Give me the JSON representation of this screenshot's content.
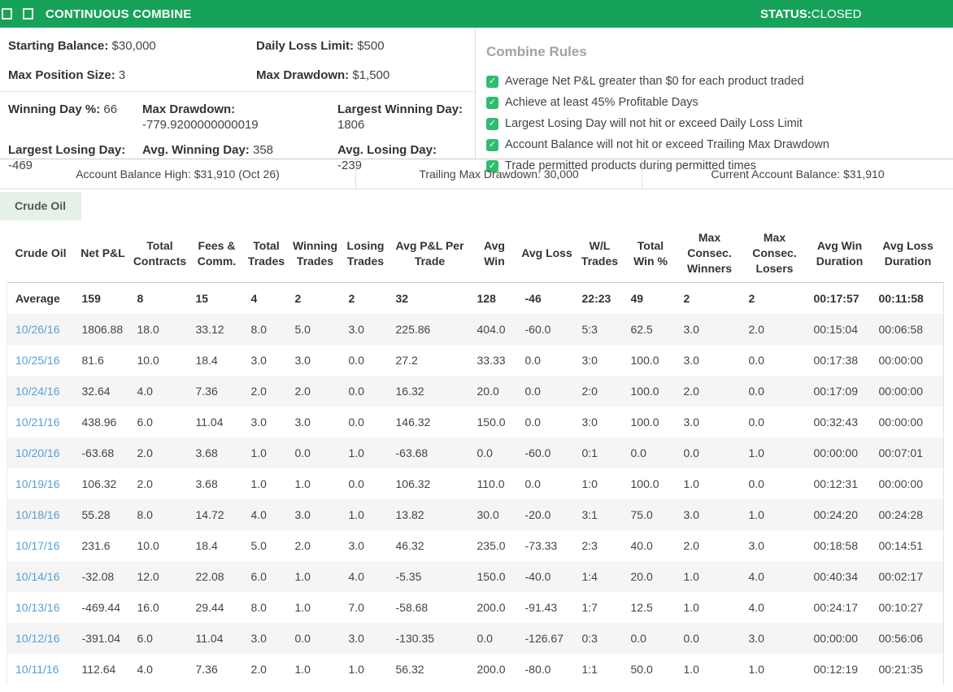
{
  "header": {
    "title": "CONTINUOUS COMBINE",
    "status_label": "STATUS:",
    "status_value": "CLOSED",
    "bar_color": "#16a259"
  },
  "stats": {
    "row1": [
      {
        "label": "Starting Balance:",
        "value": "$30,000"
      },
      {
        "label": "Daily Loss Limit:",
        "value": "$500"
      },
      {
        "label": "Max Position Size:",
        "value": "3"
      },
      {
        "label": "Max Drawdown:",
        "value": "$1,500"
      }
    ],
    "row2": [
      {
        "label": "Winning Day %:",
        "value": "66"
      },
      {
        "label": "Max Drawdown:",
        "value": "-779.9200000000019"
      },
      {
        "label": "Largest Winning Day:",
        "value": "1806"
      },
      {
        "label": "Largest Losing Day:",
        "value": "-469"
      },
      {
        "label": "Avg. Winning Day:",
        "value": "358"
      },
      {
        "label": "Avg. Losing Day:",
        "value": "-239"
      }
    ]
  },
  "rules": {
    "title": "Combine Rules",
    "check_color": "#2ebd70",
    "items": [
      "Average Net P&L greater than $0 for each product traded",
      "Achieve at least 45% Profitable Days",
      "Largest Losing Day will not hit or exceed Daily Loss Limit",
      "Account Balance will not hit or exceed Trailing Max Drawdown",
      "Trade permitted products during permitted times"
    ]
  },
  "balance_bar": {
    "cells": [
      "Account Balance High: $31,910 (Oct 26)",
      "Trailing Max Drawdown: 30,000",
      "Current Account Balance: $31,910"
    ]
  },
  "tab": {
    "label": "Crude Oil"
  },
  "table": {
    "headers": [
      "Crude Oil",
      "Net P&L",
      "Total Contracts",
      "Fees & Comm.",
      "Total Trades",
      "Winning Trades",
      "Losing Trades",
      "Avg P&L Per Trade",
      "Avg Win",
      "Avg Loss",
      "W/L Trades",
      "Total Win %",
      "Max Consec. Winners",
      "Max Consec. Losers",
      "Avg Win Duration",
      "Avg Loss Duration"
    ],
    "average_row": [
      "Average",
      "159",
      "8",
      "15",
      "4",
      "2",
      "2",
      "32",
      "128",
      "-46",
      "22:23",
      "49",
      "2",
      "2",
      "00:17:57",
      "00:11:58"
    ],
    "rows": [
      [
        "10/26/16",
        "1806.88",
        "18.0",
        "33.12",
        "8.0",
        "5.0",
        "3.0",
        "225.86",
        "404.0",
        "-60.0",
        "5:3",
        "62.5",
        "3.0",
        "2.0",
        "00:15:04",
        "00:06:58"
      ],
      [
        "10/25/16",
        "81.6",
        "10.0",
        "18.4",
        "3.0",
        "3.0",
        "0.0",
        "27.2",
        "33.33",
        "0.0",
        "3:0",
        "100.0",
        "3.0",
        "0.0",
        "00:17:38",
        "00:00:00"
      ],
      [
        "10/24/16",
        "32.64",
        "4.0",
        "7.36",
        "2.0",
        "2.0",
        "0.0",
        "16.32",
        "20.0",
        "0.0",
        "2:0",
        "100.0",
        "2.0",
        "0.0",
        "00:17:09",
        "00:00:00"
      ],
      [
        "10/21/16",
        "438.96",
        "6.0",
        "11.04",
        "3.0",
        "3.0",
        "0.0",
        "146.32",
        "150.0",
        "0.0",
        "3:0",
        "100.0",
        "3.0",
        "0.0",
        "00:32:43",
        "00:00:00"
      ],
      [
        "10/20/16",
        "-63.68",
        "2.0",
        "3.68",
        "1.0",
        "0.0",
        "1.0",
        "-63.68",
        "0.0",
        "-60.0",
        "0:1",
        "0.0",
        "0.0",
        "1.0",
        "00:00:00",
        "00:07:01"
      ],
      [
        "10/19/16",
        "106.32",
        "2.0",
        "3.68",
        "1.0",
        "1.0",
        "0.0",
        "106.32",
        "110.0",
        "0.0",
        "1:0",
        "100.0",
        "1.0",
        "0.0",
        "00:12:31",
        "00:00:00"
      ],
      [
        "10/18/16",
        "55.28",
        "8.0",
        "14.72",
        "4.0",
        "3.0",
        "1.0",
        "13.82",
        "30.0",
        "-20.0",
        "3:1",
        "75.0",
        "3.0",
        "1.0",
        "00:24:20",
        "00:24:28"
      ],
      [
        "10/17/16",
        "231.6",
        "10.0",
        "18.4",
        "5.0",
        "2.0",
        "3.0",
        "46.32",
        "235.0",
        "-73.33",
        "2:3",
        "40.0",
        "2.0",
        "3.0",
        "00:18:58",
        "00:14:51"
      ],
      [
        "10/14/16",
        "-32.08",
        "12.0",
        "22.08",
        "6.0",
        "1.0",
        "4.0",
        "-5.35",
        "150.0",
        "-40.0",
        "1:4",
        "20.0",
        "1.0",
        "4.0",
        "00:40:34",
        "00:02:17"
      ],
      [
        "10/13/16",
        "-469.44",
        "16.0",
        "29.44",
        "8.0",
        "1.0",
        "7.0",
        "-58.68",
        "200.0",
        "-91.43",
        "1:7",
        "12.5",
        "1.0",
        "4.0",
        "00:24:17",
        "00:10:27"
      ],
      [
        "10/12/16",
        "-391.04",
        "6.0",
        "11.04",
        "3.0",
        "0.0",
        "3.0",
        "-130.35",
        "0.0",
        "-126.67",
        "0:3",
        "0.0",
        "0.0",
        "3.0",
        "00:00:00",
        "00:56:06"
      ],
      [
        "10/11/16",
        "112.64",
        "4.0",
        "7.36",
        "2.0",
        "1.0",
        "1.0",
        "56.32",
        "200.0",
        "-80.0",
        "1:1",
        "50.0",
        "1.0",
        "1.0",
        "00:12:19",
        "00:21:35"
      ]
    ]
  }
}
